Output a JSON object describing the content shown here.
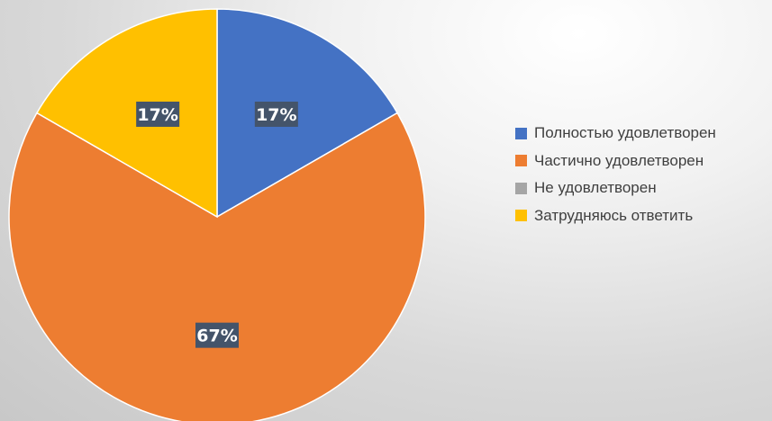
{
  "chart_data": {
    "type": "pie",
    "start_angle_deg": 0,
    "direction": "clockwise",
    "legend_position": "right",
    "slices": [
      {
        "label": "Полностью удовлетворен",
        "value": 1,
        "percent_label": "17%",
        "color": "#4472C4"
      },
      {
        "label": "Частично удовлетворен",
        "value": 4,
        "percent_label": "67%",
        "color": "#ED7D31"
      },
      {
        "label": "Не удовлетворен",
        "value": 0,
        "percent_label": "",
        "color": "#A5A5A5"
      },
      {
        "label": "Затрудняюсь ответить",
        "value": 1,
        "percent_label": "17%",
        "color": "#FFC000"
      }
    ]
  }
}
